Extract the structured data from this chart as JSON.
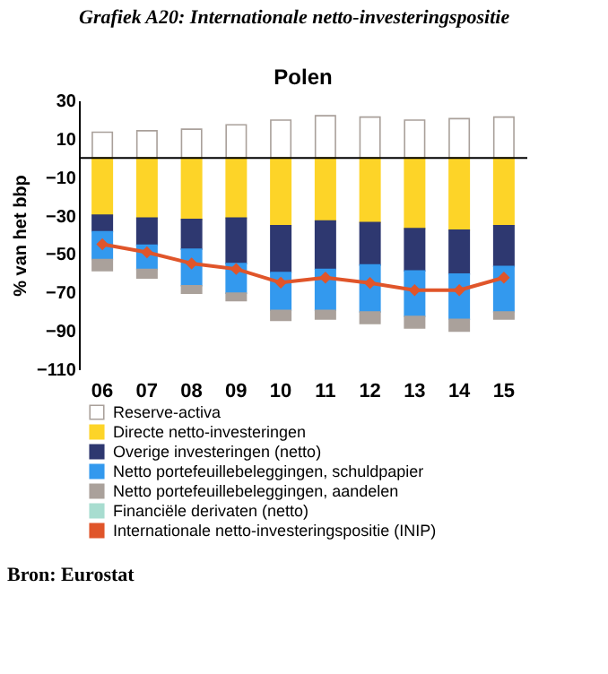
{
  "chart_data": {
    "type": "bar",
    "title": "Grafiek A20: Internationale netto-investeringspositie",
    "subtitle": "Polen",
    "ylabel": "% van het bbp",
    "stacked": true,
    "categories": [
      "06",
      "07",
      "08",
      "09",
      "10",
      "11",
      "12",
      "13",
      "14",
      "15"
    ],
    "series": [
      {
        "name": "Reserve-activa",
        "color": "#ffffff",
        "values": [
          13.4,
          14.2,
          15,
          17.3,
          19.7,
          22,
          21.3,
          19.7,
          20.5,
          21.3
        ]
      },
      {
        "name": "Directe netto-investeringen",
        "color": "#fdd428",
        "values": [
          -29.7,
          -31.3,
          -32,
          -31.3,
          -35.2,
          -32.8,
          -33.6,
          -36.8,
          -37.6,
          -35.2
        ]
      },
      {
        "name": "Overige investeringen (netto)",
        "color": "#2e3870",
        "values": [
          -8.7,
          -14.1,
          -15.5,
          -23.6,
          -24.4,
          -25.2,
          -22.1,
          -22,
          -22.8,
          -21.3
        ]
      },
      {
        "name": "Netto portefeuillebeleggingen, schuldpapier",
        "color": "#3399ee",
        "values": [
          -14.4,
          -12.6,
          -19,
          -15.5,
          -19.7,
          -21.3,
          -24.4,
          -23.7,
          -23.6,
          -23.6
        ]
      },
      {
        "name": "Netto portefeuillebeleggingen, aandelen",
        "color": "#aaa19b",
        "values": [
          -5.8,
          -4.5,
          -3.9,
          -3.9,
          -5.3,
          -4.5,
          -6.1,
          -6,
          -6.1,
          -3.7
        ]
      },
      {
        "name": "Financiële derivaten (netto)",
        "color": "#a8ddd0",
        "values": [
          null,
          null,
          null,
          null,
          null,
          null,
          null,
          null,
          null,
          null
        ]
      },
      {
        "name": "Internationale netto-investeringspositie (INIP)",
        "color": "#e0552a",
        "type": "line",
        "marker": "diamond",
        "values": [
          -44.9,
          -49.1,
          -54.9,
          -57.8,
          -64.9,
          -62.3,
          -65.1,
          -68.8,
          -68.8,
          -62.3
        ]
      }
    ],
    "ylim": [
      -110,
      30
    ],
    "yticks": [
      30,
      10,
      -10,
      -30,
      -50,
      -70,
      -90,
      -110
    ],
    "grid": false,
    "legend": "bottom",
    "annotations": [
      "Bron: Eurostat"
    ]
  }
}
